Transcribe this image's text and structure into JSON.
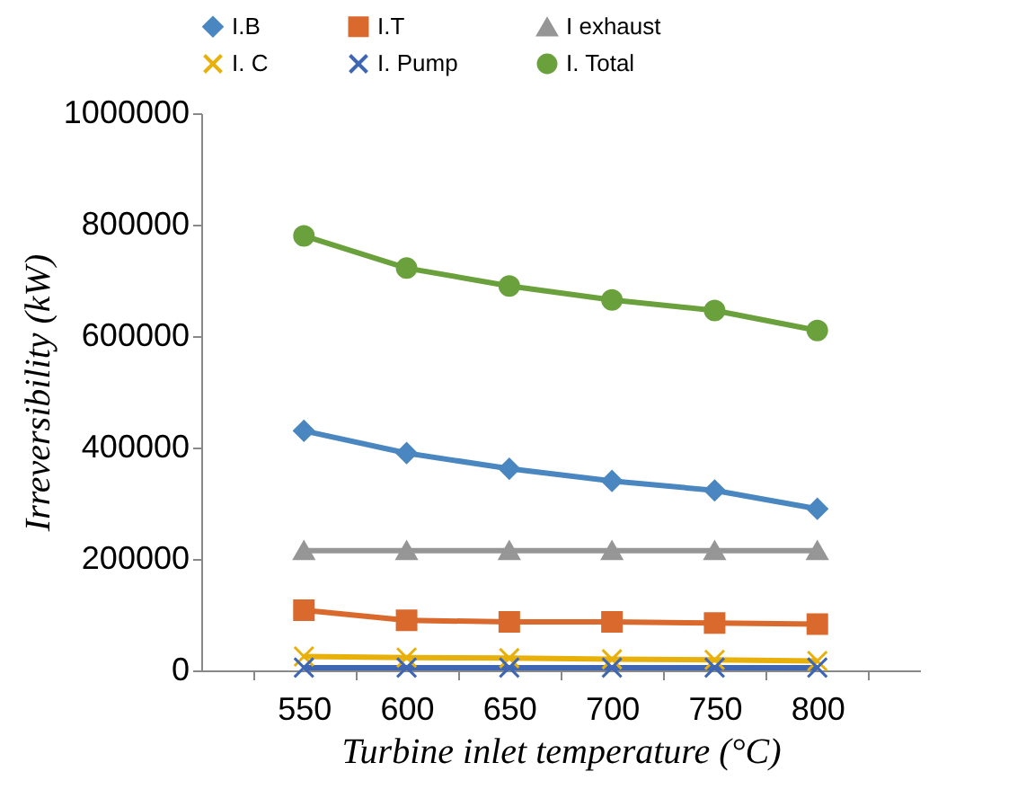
{
  "chart_data": {
    "type": "line",
    "xlabel": "Turbine inlet temperature (°C)",
    "ylabel": "Irreversibility (kW)",
    "categories": [
      "550",
      "600",
      "650",
      "700",
      "750",
      "800"
    ],
    "ylim": [
      0,
      1000000
    ],
    "yticks": [
      0,
      200000,
      400000,
      600000,
      800000,
      1000000
    ],
    "grid": false,
    "legend": "top",
    "series": [
      {
        "name": "I.B",
        "color": "#4a86c0",
        "marker": "diamond",
        "values": [
          430000,
          390000,
          362000,
          340000,
          323000,
          290000
        ]
      },
      {
        "name": "I.T",
        "color": "#d9692c",
        "marker": "square",
        "values": [
          108000,
          90000,
          87000,
          87000,
          85000,
          83000
        ]
      },
      {
        "name": "I exhaust",
        "color": "#969696",
        "marker": "triangle",
        "values": [
          215000,
          215000,
          215000,
          215000,
          215000,
          215000
        ]
      },
      {
        "name": "I. C",
        "color": "#e8b00a",
        "marker": "cross",
        "values": [
          25000,
          23000,
          22000,
          20000,
          19000,
          17000
        ]
      },
      {
        "name": "I. Pump",
        "color": "#3e66b3",
        "marker": "cross",
        "values": [
          5000,
          5000,
          5000,
          5000,
          5000,
          5000
        ]
      },
      {
        "name": "I. Total",
        "color": "#6aa13d",
        "marker": "circle",
        "values": [
          780000,
          722000,
          690000,
          665000,
          646000,
          610000
        ]
      }
    ]
  }
}
